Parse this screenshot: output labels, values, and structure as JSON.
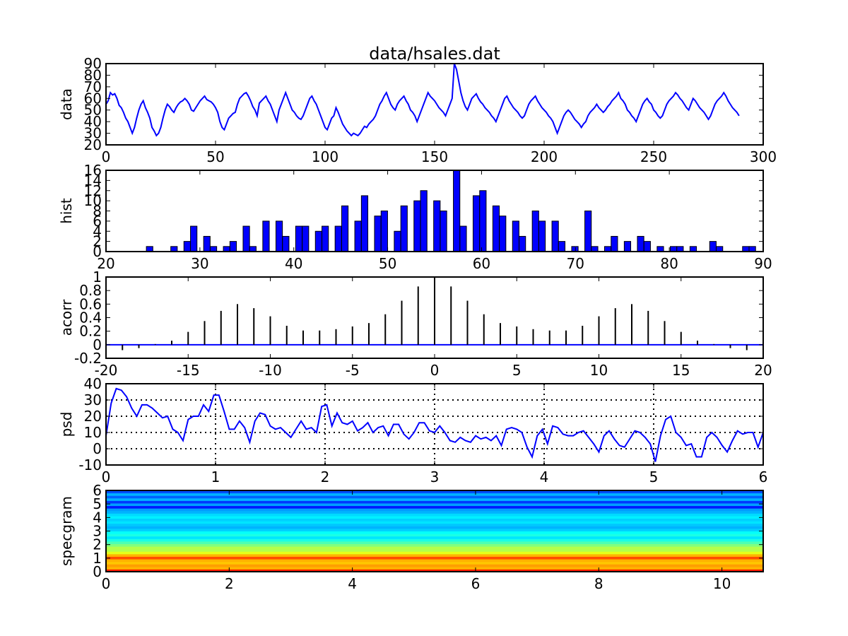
{
  "figure": {
    "title": "data/hsales.dat"
  },
  "chart_data": [
    {
      "id": "data",
      "type": "line",
      "ylabel": "data",
      "xlim": [
        0,
        300
      ],
      "ylim": [
        20,
        90
      ],
      "xticks": [
        0,
        50,
        100,
        150,
        200,
        250,
        300
      ],
      "yticks": [
        20,
        30,
        40,
        50,
        60,
        70,
        80,
        90
      ],
      "grid": false,
      "color": "#0000ff",
      "values": [
        55,
        58,
        65,
        63,
        64,
        60,
        54,
        52,
        48,
        43,
        40,
        35,
        30,
        35,
        43,
        50,
        55,
        58,
        52,
        48,
        43,
        35,
        32,
        28,
        30,
        35,
        43,
        50,
        55,
        53,
        50,
        48,
        52,
        55,
        57,
        58,
        60,
        58,
        55,
        50,
        49,
        52,
        55,
        58,
        60,
        62,
        59,
        58,
        57,
        55,
        52,
        48,
        40,
        35,
        33,
        38,
        43,
        45,
        47,
        48,
        55,
        60,
        62,
        64,
        65,
        62,
        58,
        53,
        50,
        45,
        56,
        58,
        60,
        62,
        58,
        55,
        50,
        45,
        40,
        50,
        55,
        60,
        65,
        60,
        55,
        50,
        48,
        45,
        43,
        42,
        45,
        50,
        55,
        60,
        62,
        58,
        55,
        50,
        45,
        40,
        35,
        33,
        38,
        43,
        45,
        52,
        48,
        43,
        38,
        35,
        32,
        30,
        28,
        30,
        29,
        28,
        30,
        33,
        36,
        35,
        38,
        40,
        42,
        45,
        50,
        55,
        58,
        62,
        65,
        60,
        55,
        52,
        50,
        55,
        58,
        60,
        62,
        58,
        55,
        50,
        48,
        45,
        40,
        45,
        50,
        55,
        60,
        65,
        62,
        60,
        58,
        55,
        52,
        50,
        48,
        45,
        50,
        55,
        60,
        90,
        85,
        75,
        65,
        58,
        53,
        50,
        55,
        60,
        62,
        64,
        60,
        57,
        55,
        52,
        50,
        48,
        45,
        43,
        40,
        45,
        50,
        55,
        60,
        62,
        58,
        55,
        52,
        50,
        48,
        45,
        43,
        45,
        50,
        55,
        58,
        60,
        62,
        58,
        55,
        52,
        50,
        48,
        45,
        43,
        40,
        35,
        30,
        35,
        40,
        45,
        48,
        50,
        48,
        45,
        42,
        40,
        38,
        35,
        38,
        40,
        45,
        48,
        50,
        52,
        55,
        52,
        50,
        48,
        50,
        53,
        55,
        58,
        60,
        62,
        65,
        60,
        58,
        55,
        50,
        48,
        45,
        43,
        40,
        45,
        50,
        55,
        58,
        60,
        57,
        55,
        50,
        48,
        45,
        43,
        45,
        50,
        55,
        58,
        60,
        62,
        65,
        63,
        60,
        58,
        55,
        52,
        50,
        55,
        60,
        58,
        55,
        52,
        50,
        48,
        45,
        42,
        45,
        50,
        55,
        58,
        60,
        62,
        65,
        62,
        58,
        55,
        52,
        50,
        48,
        45
      ]
    },
    {
      "id": "hist",
      "type": "bar",
      "ylabel": "hist",
      "xlim": [
        20,
        90
      ],
      "ylim": [
        0,
        16
      ],
      "xticks": [
        20,
        30,
        40,
        50,
        60,
        70,
        80,
        90
      ],
      "yticks": [
        0,
        2,
        4,
        6,
        8,
        10,
        12,
        14,
        16
      ],
      "grid": false,
      "color": "#0000ff",
      "bin_width": 0.69,
      "x": [
        24.3,
        26.9,
        28.3,
        29.0,
        30.4,
        31.1,
        32.5,
        33.2,
        34.6,
        35.3,
        36.7,
        38.1,
        38.8,
        40.2,
        40.9,
        42.3,
        43.0,
        44.4,
        45.1,
        46.5,
        47.2,
        48.6,
        49.3,
        50.7,
        51.4,
        52.8,
        53.5,
        54.9,
        55.6,
        57.0,
        57.7,
        59.1,
        59.8,
        61.2,
        61.9,
        63.3,
        64.0,
        65.4,
        66.1,
        67.5,
        68.2,
        69.6,
        71.0,
        71.7,
        73.1,
        73.8,
        75.2,
        76.6,
        77.3,
        78.7,
        80.1,
        80.8,
        82.2,
        84.3,
        85.0,
        87.8,
        88.5
      ],
      "values": [
        1,
        1,
        2,
        5,
        3,
        1,
        1,
        2,
        5,
        1,
        6,
        6,
        3,
        5,
        5,
        4,
        5,
        5,
        9,
        6,
        11,
        7,
        8,
        4,
        9,
        10,
        12,
        10,
        8,
        16,
        5,
        11,
        12,
        9,
        7,
        6,
        3,
        8,
        6,
        6,
        2,
        1,
        8,
        1,
        1,
        3,
        2,
        3,
        2,
        1,
        1,
        1,
        1,
        2,
        1,
        1,
        1
      ]
    },
    {
      "id": "acorr",
      "type": "stem",
      "ylabel": "acorr",
      "xlim": [
        -20,
        20
      ],
      "ylim": [
        -0.2,
        1.0
      ],
      "xticks": [
        -20,
        -15,
        -10,
        -5,
        0,
        5,
        10,
        15,
        20
      ],
      "yticks": [
        -0.2,
        0.0,
        0.2,
        0.4,
        0.6,
        0.8,
        1.0
      ],
      "grid": false,
      "color": "#000000",
      "baseline_color": "#0000ff",
      "lags": [
        -19,
        -18,
        -17,
        -16,
        -15,
        -14,
        -13,
        -12,
        -11,
        -10,
        -9,
        -8,
        -7,
        -6,
        -5,
        -4,
        -3,
        -2,
        -1,
        0,
        1,
        2,
        3,
        4,
        5,
        6,
        7,
        8,
        9,
        10,
        11,
        12,
        13,
        14,
        15,
        16,
        17,
        18,
        19
      ],
      "values": [
        -0.08,
        -0.05,
        0.01,
        0.06,
        0.19,
        0.35,
        0.5,
        0.6,
        0.54,
        0.42,
        0.28,
        0.21,
        0.21,
        0.23,
        0.27,
        0.32,
        0.45,
        0.65,
        0.86,
        1.0,
        0.86,
        0.65,
        0.45,
        0.32,
        0.27,
        0.23,
        0.21,
        0.21,
        0.28,
        0.42,
        0.54,
        0.6,
        0.5,
        0.35,
        0.19,
        0.06,
        0.01,
        -0.05,
        -0.08
      ]
    },
    {
      "id": "psd",
      "type": "line",
      "ylabel": "psd",
      "xlim": [
        0,
        6
      ],
      "ylim": [
        -10,
        40
      ],
      "xticks": [
        0,
        1,
        2,
        3,
        4,
        5,
        6
      ],
      "yticks": [
        -10,
        0,
        10,
        20,
        30,
        40
      ],
      "grid": true,
      "color": "#0000ff",
      "x_step": 0.046875,
      "values": [
        8,
        28,
        37,
        36,
        32,
        25,
        20,
        27,
        27,
        25,
        22,
        19,
        20,
        12,
        10,
        5,
        18,
        20,
        20,
        27,
        23,
        33,
        33,
        23,
        12,
        12,
        17,
        13,
        4,
        17,
        22,
        21,
        14,
        12,
        13,
        10,
        7,
        12,
        17,
        12,
        13,
        10,
        26,
        27,
        14,
        22,
        16,
        15,
        17,
        11,
        13,
        16,
        10,
        13,
        14,
        8,
        15,
        15,
        9,
        6,
        10,
        16,
        16,
        11,
        10,
        14,
        10,
        5,
        4,
        7,
        5,
        4,
        8,
        6,
        7,
        5,
        8,
        2,
        12,
        13,
        12,
        10,
        1,
        -5,
        8,
        12,
        3,
        14,
        13,
        9,
        8,
        8,
        10,
        11,
        7,
        3,
        -2,
        8,
        11,
        6,
        2,
        1,
        6,
        11,
        10,
        7,
        3,
        -8,
        8,
        18,
        20,
        10,
        7,
        2,
        3,
        -5,
        -5,
        7,
        10,
        7,
        2,
        -2,
        5,
        11,
        9,
        10,
        10,
        1,
        10,
        12,
        10
      ]
    },
    {
      "id": "specgram",
      "type": "heatmap",
      "ylabel": "specgram",
      "xlim": [
        0,
        10.67
      ],
      "ylim": [
        0,
        6
      ],
      "xticks": [
        0,
        2,
        4,
        6,
        8,
        10
      ],
      "yticks": [
        0,
        1,
        2,
        3,
        4,
        5,
        6
      ],
      "grid": false,
      "colormap": "jet",
      "band_height": 0.1875,
      "band_values": [
        0.85,
        0.7,
        0.72,
        0.68,
        0.7,
        0.8,
        0.7,
        0.6,
        0.55,
        0.55,
        0.5,
        0.45,
        0.4,
        0.35,
        0.4,
        0.38,
        0.33,
        0.3,
        0.32,
        0.35,
        0.33,
        0.36,
        0.34,
        0.3,
        0.28,
        0.15,
        0.28,
        0.18,
        0.3,
        0.22,
        0.3,
        0.2
      ]
    }
  ]
}
